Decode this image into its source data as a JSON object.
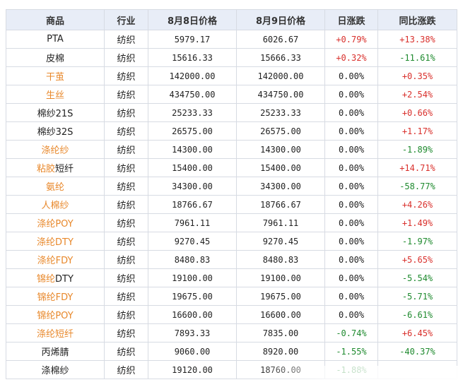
{
  "headers": [
    "商品",
    "行业",
    "8月8日价格",
    "8月9日价格",
    "日涨跌",
    "同比涨跌"
  ],
  "rows": [
    {
      "name": "PTA",
      "industry": "纺织",
      "p1": "5979.17",
      "p2": "6026.67",
      "daily": "+0.79%",
      "yoy": "+13.38%",
      "link": false
    },
    {
      "name": "皮棉",
      "industry": "纺织",
      "p1": "15616.33",
      "p2": "15666.33",
      "daily": "+0.32%",
      "yoy": "-11.61%",
      "link": false
    },
    {
      "name": "干茧",
      "industry": "纺织",
      "p1": "142000.00",
      "p2": "142000.00",
      "daily": "0.00%",
      "yoy": "+0.35%",
      "link": true
    },
    {
      "name": "生丝",
      "industry": "纺织",
      "p1": "434750.00",
      "p2": "434750.00",
      "daily": "0.00%",
      "yoy": "+2.54%",
      "link": true
    },
    {
      "name": "棉纱21S",
      "industry": "纺织",
      "p1": "25233.33",
      "p2": "25233.33",
      "daily": "0.00%",
      "yoy": "+0.66%",
      "link": false
    },
    {
      "name": "棉纱32S",
      "industry": "纺织",
      "p1": "26575.00",
      "p2": "26575.00",
      "daily": "0.00%",
      "yoy": "+1.17%",
      "link": false
    },
    {
      "name": "涤纶纱",
      "industry": "纺织",
      "p1": "14300.00",
      "p2": "14300.00",
      "daily": "0.00%",
      "yoy": "-1.89%",
      "link": true
    },
    {
      "name": "粘胶短纤",
      "industry": "纺织",
      "p1": "15400.00",
      "p2": "15400.00",
      "daily": "0.00%",
      "yoy": "+14.71%",
      "link": "partial",
      "name_a": "粘胶",
      "name_b": "短纤"
    },
    {
      "name": "氨纶",
      "industry": "纺织",
      "p1": "34300.00",
      "p2": "34300.00",
      "daily": "0.00%",
      "yoy": "-58.77%",
      "link": true
    },
    {
      "name": "人棉纱",
      "industry": "纺织",
      "p1": "18766.67",
      "p2": "18766.67",
      "daily": "0.00%",
      "yoy": "+4.26%",
      "link": true
    },
    {
      "name": "涤纶POY",
      "industry": "纺织",
      "p1": "7961.11",
      "p2": "7961.11",
      "daily": "0.00%",
      "yoy": "+1.49%",
      "link": true
    },
    {
      "name": "涤纶DTY",
      "industry": "纺织",
      "p1": "9270.45",
      "p2": "9270.45",
      "daily": "0.00%",
      "yoy": "-1.97%",
      "link": true
    },
    {
      "name": "涤纶FDY",
      "industry": "纺织",
      "p1": "8480.83",
      "p2": "8480.83",
      "daily": "0.00%",
      "yoy": "+5.65%",
      "link": true
    },
    {
      "name": "锦纶DTY",
      "industry": "纺织",
      "p1": "19100.00",
      "p2": "19100.00",
      "daily": "0.00%",
      "yoy": "-5.54%",
      "link": "partial",
      "name_a": "锦纶",
      "name_b": "DTY"
    },
    {
      "name": "锦纶FDY",
      "industry": "纺织",
      "p1": "19675.00",
      "p2": "19675.00",
      "daily": "0.00%",
      "yoy": "-5.71%",
      "link": true
    },
    {
      "name": "锦纶POY",
      "industry": "纺织",
      "p1": "16600.00",
      "p2": "16600.00",
      "daily": "0.00%",
      "yoy": "-6.61%",
      "link": true
    },
    {
      "name": "涤纶短纤",
      "industry": "纺织",
      "p1": "7893.33",
      "p2": "7835.00",
      "daily": "-0.74%",
      "yoy": "+6.45%",
      "link": true
    },
    {
      "name": "丙烯腈",
      "industry": "纺织",
      "p1": "9060.00",
      "p2": "8920.00",
      "daily": "-1.55%",
      "yoy": "-40.37%",
      "link": false
    },
    {
      "name": "涤棉纱",
      "industry": "纺织",
      "p1": "19120.00",
      "p2": "18760.00",
      "daily": "-1.88%",
      "yoy": "",
      "link": false
    }
  ],
  "colors": {
    "link": "#e8882b",
    "up": "#d9302c",
    "down": "#1e8a2e",
    "header_bg": "#e8edf7",
    "border": "#d7dbe3"
  }
}
